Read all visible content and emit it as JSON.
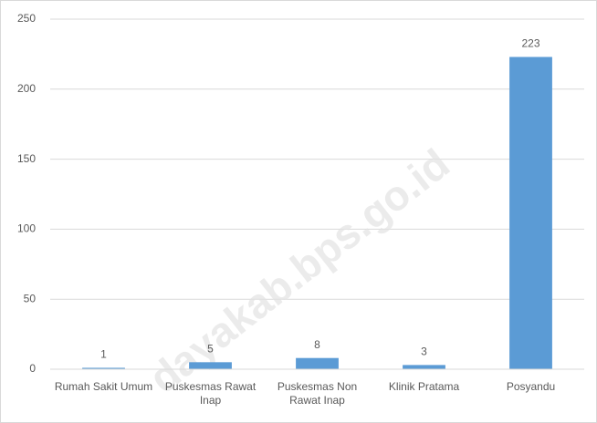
{
  "chart_data": {
    "type": "bar",
    "categories": [
      "Rumah Sakit Umum",
      "Puskesmas Rawat Inap",
      "Puskesmas Non Rawat Inap",
      "Klinik Pratama",
      "Posyandu"
    ],
    "values": [
      1,
      5,
      8,
      3,
      223
    ],
    "color": "#5b9bd5",
    "ylim": [
      0,
      250
    ],
    "yticks": [
      0,
      50,
      100,
      150,
      200,
      250
    ],
    "grid": true,
    "watermark": "dayakab.bps.go.id"
  }
}
